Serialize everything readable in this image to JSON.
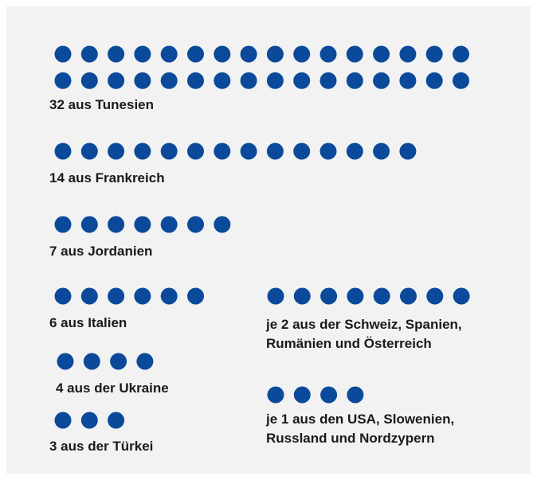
{
  "chart_data": {
    "type": "dots",
    "categories": [
      "32 aus Tunesien",
      "14 aus Frankreich",
      "7 aus Jordanien",
      "6 aus Italien",
      "4 aus der Ukraine",
      "3 aus der Türkei",
      "je 2 aus der Schweiz, Spanien, Rumänien und Österreich",
      "je 1 aus den USA, Slowenien, Russland und Nordzypern"
    ],
    "values": [
      32,
      14,
      7,
      6,
      4,
      3,
      8,
      4
    ],
    "color": "#0b4a9a"
  }
}
